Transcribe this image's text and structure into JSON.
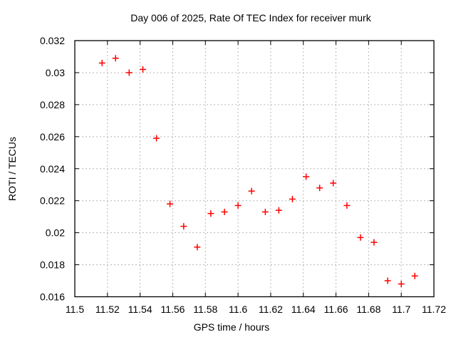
{
  "chart_data": {
    "type": "scatter",
    "title": "Day 006 of 2025, Rate Of TEC Index for receiver murk",
    "xlabel": "GPS time / hours",
    "ylabel": "ROTI / TECUs",
    "xlim": [
      11.5,
      11.72
    ],
    "ylim": [
      0.016,
      0.032
    ],
    "xticks": [
      11.5,
      11.52,
      11.54,
      11.56,
      11.58,
      11.6,
      11.62,
      11.64,
      11.66,
      11.68,
      11.7,
      11.72
    ],
    "xtick_labels": [
      "11.5",
      "11.52",
      "11.54",
      "11.56",
      "11.58",
      "11.6",
      "11.62",
      "11.64",
      "11.66",
      "11.68",
      "11.7",
      "11.72"
    ],
    "yticks": [
      0.016,
      0.018,
      0.02,
      0.022,
      0.024,
      0.026,
      0.028,
      0.03,
      0.032
    ],
    "ytick_labels": [
      "0.016",
      "0.018",
      "0.02",
      "0.022",
      "0.024",
      "0.026",
      "0.028",
      "0.03",
      "0.032"
    ],
    "grid": true,
    "grid_color": "#b8b8b8",
    "legend": false,
    "marker": {
      "shape": "plus",
      "color": "#ff0000",
      "size": 9
    },
    "series": [
      {
        "name": "ROTI",
        "points": [
          [
            11.5167,
            0.0306
          ],
          [
            11.525,
            0.0309
          ],
          [
            11.5333,
            0.03
          ],
          [
            11.5417,
            0.0302
          ],
          [
            11.55,
            0.0259
          ],
          [
            11.5583,
            0.0218
          ],
          [
            11.5667,
            0.0204
          ],
          [
            11.575,
            0.0191
          ],
          [
            11.5833,
            0.0212
          ],
          [
            11.5917,
            0.0213
          ],
          [
            11.6,
            0.0217
          ],
          [
            11.6083,
            0.0226
          ],
          [
            11.6167,
            0.0213
          ],
          [
            11.625,
            0.0214
          ],
          [
            11.6333,
            0.0221
          ],
          [
            11.6417,
            0.0235
          ],
          [
            11.65,
            0.0228
          ],
          [
            11.6583,
            0.0231
          ],
          [
            11.6667,
            0.0217
          ],
          [
            11.675,
            0.0197
          ],
          [
            11.6833,
            0.0194
          ],
          [
            11.6917,
            0.017
          ],
          [
            11.7,
            0.0168
          ],
          [
            11.7083,
            0.0173
          ]
        ]
      }
    ]
  }
}
